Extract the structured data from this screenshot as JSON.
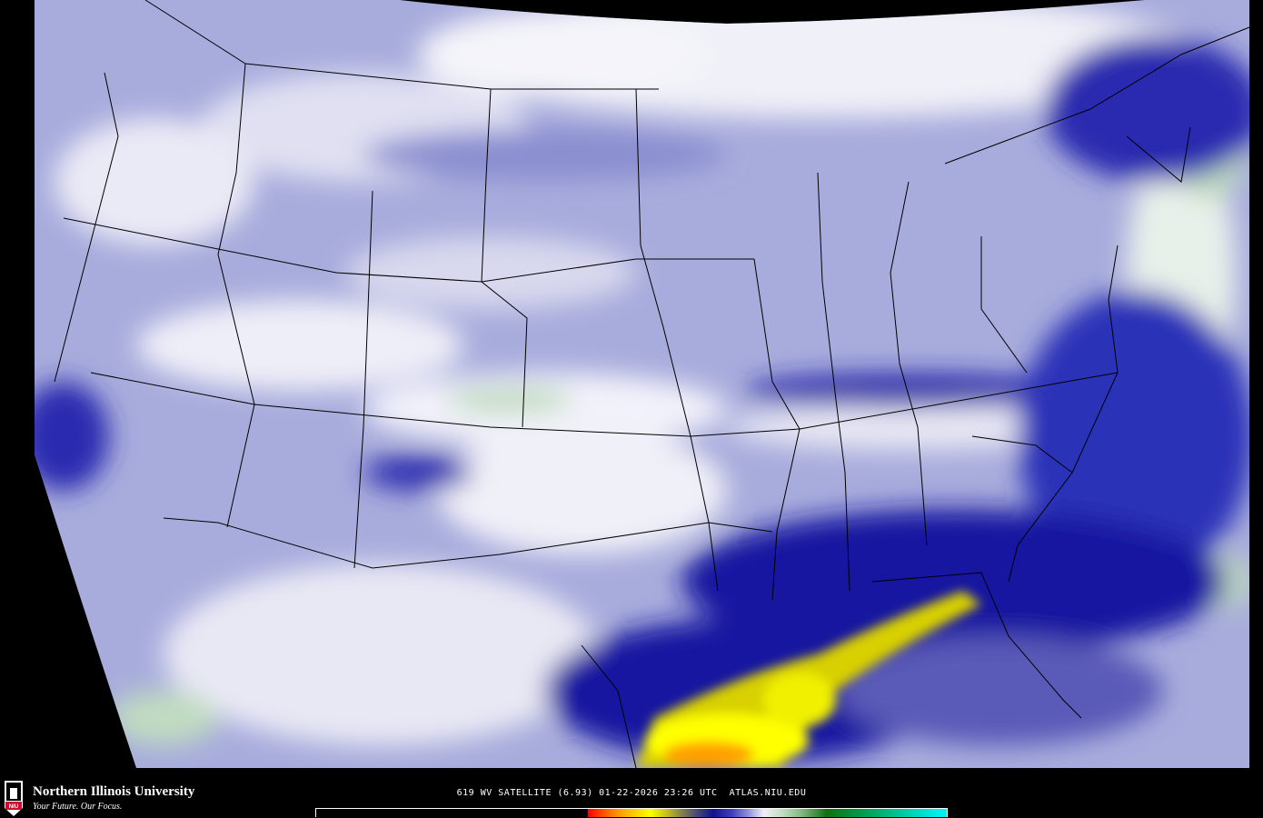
{
  "map": {
    "type": "water-vapor satellite imagery",
    "region": "Contiguous United States",
    "colors": {
      "background": "#000000",
      "dry_high": "#1a1aa8",
      "moderate": "#a8acdc",
      "moist": "#f2f2fa",
      "very_moist": "#80b880",
      "very_dry": "#ffff00",
      "driest": "#ff6000",
      "boundaries": "#000000"
    }
  },
  "footer": {
    "logo": {
      "name": "Northern Illinois University",
      "tagline": "Your Future. Our Focus.",
      "badge": "NIU"
    },
    "caption": "619 WV SATELLITE (6.93) 01-22-2026 23:26 UTC  ATLAS.NIU.EDU",
    "colorbar": {
      "stops": [
        "#000000",
        "#ff0000",
        "#ff8000",
        "#ffff00",
        "#808050",
        "#101090",
        "#9090d8",
        "#f0f0f8",
        "#80b880",
        "#107010",
        "#00a050",
        "#00f0f0"
      ]
    }
  }
}
